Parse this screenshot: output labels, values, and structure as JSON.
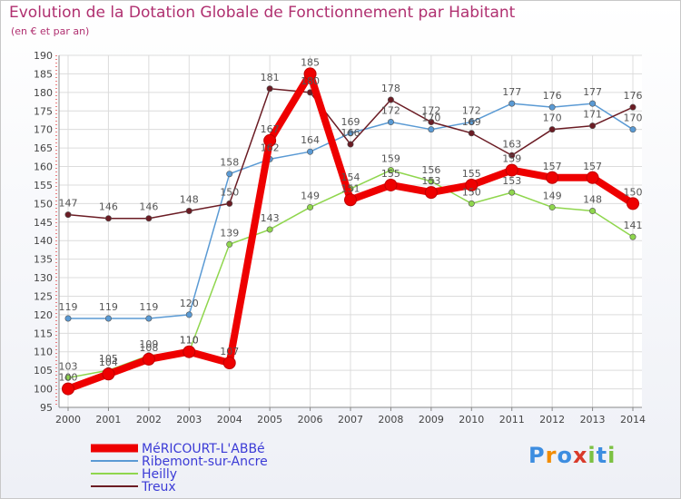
{
  "chart_data": {
    "type": "line",
    "title": "Evolution de la Dotation Globale de Fonctionnement par Habitant",
    "subtitle": "(en € et par an)",
    "xlabel": "",
    "ylabel": "",
    "categories": [
      "2000",
      "2001",
      "2002",
      "2003",
      "2004",
      "2005",
      "2006",
      "2007",
      "2008",
      "2009",
      "2010",
      "2011",
      "2012",
      "2013",
      "2014"
    ],
    "ylim": [
      95,
      190
    ],
    "ytick_step": 5,
    "grid": true,
    "legend_position": "bottom-left",
    "series": [
      {
        "name": "MéRICOURT-L'ABBé",
        "color": "#ee0000",
        "emphasis": true,
        "values": [
          100,
          104,
          108,
          110,
          107,
          167,
          185,
          151,
          155,
          153,
          155,
          159,
          157,
          157,
          150
        ]
      },
      {
        "name": "Ribemont-sur-Ancre",
        "color": "#5a9ad4",
        "values": [
          119,
          119,
          119,
          120,
          158,
          162,
          164,
          169,
          172,
          170,
          172,
          177,
          176,
          177,
          170
        ]
      },
      {
        "name": "Heilly",
        "color": "#8fd64d",
        "values": [
          103,
          105,
          109,
          110,
          139,
          143,
          149,
          154,
          159,
          156,
          150,
          153,
          149,
          148,
          141
        ]
      },
      {
        "name": "Treux",
        "color": "#6b1c24",
        "values": [
          147,
          146,
          146,
          148,
          150,
          181,
          180,
          166,
          178,
          172,
          169,
          163,
          170,
          171,
          176
        ]
      }
    ]
  },
  "logo": {
    "letters": [
      "P",
      "r",
      "o",
      "x",
      "i",
      "t",
      "i"
    ],
    "colors": [
      "#3d8de0",
      "#f28c00",
      "#3d8de0",
      "#d93a2a",
      "#7cc142",
      "#3d8de0",
      "#7cc142"
    ]
  }
}
